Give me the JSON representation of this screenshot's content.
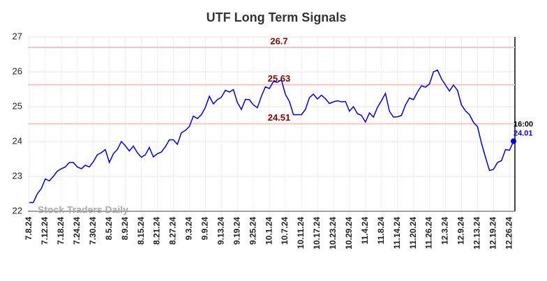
{
  "chart_data": {
    "type": "line",
    "title": "UTF Long Term Signals",
    "watermark": "Stock Traders Daily",
    "last_time": "16:00",
    "categories": [
      "7.8.24",
      null,
      null,
      null,
      "7.12.24",
      null,
      null,
      null,
      "7.18.24",
      null,
      null,
      null,
      "7.24.24",
      null,
      null,
      null,
      "7.30.24",
      null,
      null,
      null,
      "8.5.24",
      null,
      null,
      null,
      "8.9.24",
      null,
      null,
      null,
      "8.15.24",
      null,
      null,
      null,
      "8.21.24",
      null,
      null,
      null,
      "8.27.24",
      null,
      null,
      null,
      "9.3.24",
      null,
      null,
      null,
      "9.9.24",
      null,
      null,
      null,
      "9.13.24",
      null,
      null,
      null,
      "9.19.24",
      null,
      null,
      null,
      "9.25.24",
      null,
      null,
      null,
      "10.1.24",
      null,
      null,
      null,
      "10.7.24",
      null,
      null,
      null,
      "10.11.24",
      null,
      null,
      null,
      "10.17.24",
      null,
      null,
      null,
      "10.23.24",
      null,
      null,
      null,
      "10.29.24",
      null,
      null,
      null,
      "11.4.24",
      null,
      null,
      null,
      "11.8.24",
      null,
      null,
      null,
      "11.14.24",
      null,
      null,
      null,
      "11.20.24",
      null,
      null,
      null,
      "11.26.24",
      null,
      null,
      null,
      "12.3.24",
      null,
      null,
      null,
      "12.9.24",
      null,
      null,
      null,
      "12.13.24",
      null,
      null,
      null,
      "12.19.24",
      null,
      null,
      null,
      "12.26.24",
      null
    ],
    "series": [
      {
        "name": "UTF",
        "color": "#0000dd",
        "values": [
          22.25,
          22.25,
          22.5,
          22.65,
          22.93,
          22.87,
          23.0,
          23.15,
          23.22,
          23.27,
          23.4,
          23.4,
          23.27,
          23.22,
          23.32,
          23.27,
          23.42,
          23.62,
          23.68,
          23.77,
          23.4,
          23.65,
          23.77,
          24.0,
          23.88,
          23.73,
          23.87,
          23.68,
          23.55,
          23.62,
          23.83,
          23.56,
          23.65,
          23.7,
          23.85,
          24.05,
          24.05,
          23.92,
          24.25,
          24.32,
          24.43,
          24.73,
          24.66,
          24.77,
          24.98,
          25.3,
          25.08,
          25.2,
          25.27,
          25.47,
          25.42,
          25.49,
          25.12,
          24.92,
          25.21,
          25.2,
          25.05,
          24.97,
          25.3,
          25.57,
          25.52,
          25.72,
          25.7,
          25.77,
          25.35,
          25.15,
          24.77,
          24.77,
          24.77,
          24.92,
          25.26,
          25.36,
          25.22,
          25.33,
          25.23,
          25.09,
          25.14,
          25.17,
          25.14,
          25.15,
          24.87,
          25.0,
          24.8,
          24.75,
          24.56,
          24.82,
          24.7,
          24.98,
          25.17,
          25.38,
          24.87,
          24.7,
          24.71,
          24.75,
          25.05,
          25.25,
          25.2,
          25.42,
          25.6,
          25.56,
          25.65,
          26.0,
          26.05,
          25.8,
          25.62,
          25.45,
          25.62,
          25.47,
          25.05,
          24.88,
          24.77,
          24.55,
          24.43,
          23.95,
          23.55,
          23.17,
          23.2,
          23.4,
          23.45,
          23.77,
          23.75,
          24.01
        ]
      }
    ],
    "hlines": [
      26.7,
      25.63,
      24.51
    ],
    "hline_color": "#ffc0c0",
    "hline_label_color": "#8b0000",
    "ylim": [
      22,
      27
    ],
    "yticks": [
      22,
      23,
      24,
      25,
      26,
      27
    ],
    "grid": true
  }
}
